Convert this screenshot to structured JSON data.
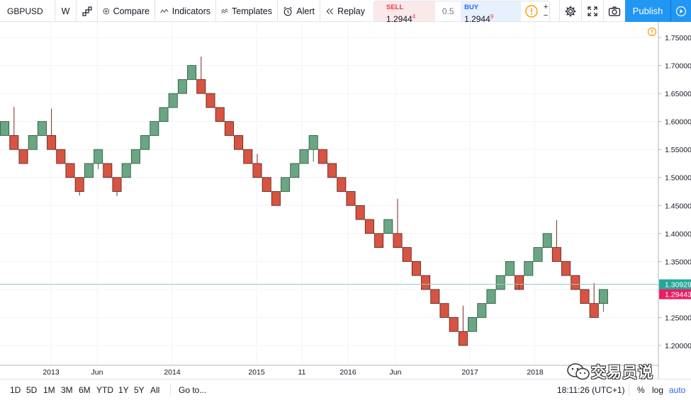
{
  "toolbar": {
    "symbol": "GBPUSD",
    "interval": "W",
    "compare_label": "Compare",
    "indicators_label": "Indicators",
    "templates_label": "Templates",
    "alert_label": "Alert",
    "replay_label": "Replay",
    "publish_label": "Publish"
  },
  "trade": {
    "sell_label": "SELL",
    "sell_price_main": "1.2944",
    "sell_price_sup": "4",
    "spread": "0.5",
    "buy_label": "BUY",
    "buy_price_main": "1.2944",
    "buy_price_sup": "9",
    "plus": "+",
    "minus": "−"
  },
  "bottom": {
    "ranges": [
      "1D",
      "5D",
      "1M",
      "3M",
      "6M",
      "YTD",
      "1Y",
      "5Y",
      "All"
    ],
    "goto_label": "Go to...",
    "clock": "18:11:26 (UTC+1)",
    "percent_label": "%",
    "log_label": "log",
    "auto_label": "auto"
  },
  "watermark": {
    "text": "交易员说"
  },
  "chart_data": {
    "type": "renko",
    "box_size": 0.025,
    "y_ticks": [
      "1.75000",
      "1.70000",
      "1.65000",
      "1.60000",
      "1.55000",
      "1.50000",
      "1.45000",
      "1.40000",
      "1.35000",
      "1.30000",
      "1.25000",
      "1.20000"
    ],
    "y_tick_values": [
      1.75,
      1.7,
      1.65,
      1.6,
      1.55,
      1.5,
      1.45,
      1.4,
      1.35,
      1.3,
      1.25,
      1.2
    ],
    "x_labels": [
      "2013",
      "Jun",
      "2014",
      "2015",
      "11",
      "2016",
      "Jun",
      "2017",
      "2018"
    ],
    "price_labels": [
      {
        "value": "1.30929",
        "color": "#26a69a"
      },
      {
        "value": "1.29443",
        "color": "#e91e63"
      }
    ],
    "colors": {
      "up": "#6ba583",
      "down": "#d75442",
      "border": "#225437",
      "down_border": "#5b1a13",
      "wick": "#555555"
    },
    "bricks": [
      {
        "dir": "up",
        "low": 1.575,
        "high": 1.6
      },
      {
        "dir": "down",
        "low": 1.55,
        "high": 1.575
      },
      {
        "dir": "down",
        "low": 1.525,
        "high": 1.55
      },
      {
        "dir": "up",
        "low": 1.55,
        "high": 1.575
      },
      {
        "dir": "up",
        "low": 1.575,
        "high": 1.6
      },
      {
        "dir": "down",
        "low": 1.55,
        "high": 1.575
      },
      {
        "dir": "down",
        "low": 1.525,
        "high": 1.55
      },
      {
        "dir": "down",
        "low": 1.5,
        "high": 1.525
      },
      {
        "dir": "down",
        "low": 1.475,
        "high": 1.5
      },
      {
        "dir": "up",
        "low": 1.5,
        "high": 1.525
      },
      {
        "dir": "up",
        "low": 1.525,
        "high": 1.55
      },
      {
        "dir": "down",
        "low": 1.5,
        "high": 1.525
      },
      {
        "dir": "down",
        "low": 1.475,
        "high": 1.5
      },
      {
        "dir": "up",
        "low": 1.5,
        "high": 1.525
      },
      {
        "dir": "up",
        "low": 1.525,
        "high": 1.55
      },
      {
        "dir": "up",
        "low": 1.55,
        "high": 1.575
      },
      {
        "dir": "up",
        "low": 1.575,
        "high": 1.6
      },
      {
        "dir": "up",
        "low": 1.6,
        "high": 1.625
      },
      {
        "dir": "up",
        "low": 1.625,
        "high": 1.65
      },
      {
        "dir": "up",
        "low": 1.65,
        "high": 1.675
      },
      {
        "dir": "up",
        "low": 1.675,
        "high": 1.7
      },
      {
        "dir": "down",
        "low": 1.65,
        "high": 1.675
      },
      {
        "dir": "down",
        "low": 1.625,
        "high": 1.65
      },
      {
        "dir": "down",
        "low": 1.6,
        "high": 1.625
      },
      {
        "dir": "down",
        "low": 1.575,
        "high": 1.6
      },
      {
        "dir": "down",
        "low": 1.55,
        "high": 1.575
      },
      {
        "dir": "down",
        "low": 1.525,
        "high": 1.55
      },
      {
        "dir": "down",
        "low": 1.5,
        "high": 1.525
      },
      {
        "dir": "down",
        "low": 1.475,
        "high": 1.5
      },
      {
        "dir": "down",
        "low": 1.45,
        "high": 1.475
      },
      {
        "dir": "up",
        "low": 1.475,
        "high": 1.5
      },
      {
        "dir": "up",
        "low": 1.5,
        "high": 1.525
      },
      {
        "dir": "up",
        "low": 1.525,
        "high": 1.55
      },
      {
        "dir": "up",
        "low": 1.55,
        "high": 1.575
      },
      {
        "dir": "down",
        "low": 1.525,
        "high": 1.55
      },
      {
        "dir": "down",
        "low": 1.5,
        "high": 1.525
      },
      {
        "dir": "down",
        "low": 1.475,
        "high": 1.5
      },
      {
        "dir": "down",
        "low": 1.45,
        "high": 1.475
      },
      {
        "dir": "down",
        "low": 1.425,
        "high": 1.45
      },
      {
        "dir": "down",
        "low": 1.4,
        "high": 1.425
      },
      {
        "dir": "down",
        "low": 1.375,
        "high": 1.4
      },
      {
        "dir": "up",
        "low": 1.4,
        "high": 1.425
      },
      {
        "dir": "down",
        "low": 1.375,
        "high": 1.4
      },
      {
        "dir": "down",
        "low": 1.35,
        "high": 1.375
      },
      {
        "dir": "down",
        "low": 1.325,
        "high": 1.35
      },
      {
        "dir": "down",
        "low": 1.3,
        "high": 1.325
      },
      {
        "dir": "down",
        "low": 1.275,
        "high": 1.3
      },
      {
        "dir": "down",
        "low": 1.25,
        "high": 1.275
      },
      {
        "dir": "down",
        "low": 1.225,
        "high": 1.25
      },
      {
        "dir": "down",
        "low": 1.2,
        "high": 1.225
      },
      {
        "dir": "up",
        "low": 1.225,
        "high": 1.25
      },
      {
        "dir": "up",
        "low": 1.25,
        "high": 1.275
      },
      {
        "dir": "up",
        "low": 1.275,
        "high": 1.3
      },
      {
        "dir": "up",
        "low": 1.3,
        "high": 1.325
      },
      {
        "dir": "up",
        "low": 1.325,
        "high": 1.35
      },
      {
        "dir": "down",
        "low": 1.3,
        "high": 1.325
      },
      {
        "dir": "up",
        "low": 1.325,
        "high": 1.35
      },
      {
        "dir": "up",
        "low": 1.35,
        "high": 1.375
      },
      {
        "dir": "up",
        "low": 1.375,
        "high": 1.4
      },
      {
        "dir": "down",
        "low": 1.35,
        "high": 1.375
      },
      {
        "dir": "down",
        "low": 1.325,
        "high": 1.35
      },
      {
        "dir": "down",
        "low": 1.3,
        "high": 1.325
      },
      {
        "dir": "down",
        "low": 1.275,
        "high": 1.3
      },
      {
        "dir": "down",
        "low": 1.25,
        "high": 1.275
      },
      {
        "dir": "up",
        "low": 1.275,
        "high": 1.3
      }
    ],
    "wicks": [
      {
        "brick": 1,
        "top": 1.626
      },
      {
        "brick": 5,
        "top": 1.623
      },
      {
        "brick": 8,
        "bottom": 1.468
      },
      {
        "brick": 10,
        "bottom": 1.515
      },
      {
        "brick": 12,
        "bottom": 1.467
      },
      {
        "brick": 21,
        "top": 1.716
      },
      {
        "brick": 27,
        "top": 1.542
      },
      {
        "brick": 33,
        "bottom": 1.528
      },
      {
        "brick": 42,
        "top": 1.462
      },
      {
        "brick": 49,
        "top": 1.271
      },
      {
        "brick": 55,
        "bottom": 1.311
      },
      {
        "brick": 59,
        "top": 1.424
      },
      {
        "brick": 63,
        "top": 1.312
      },
      {
        "brick": 64,
        "bottom": 1.26
      }
    ],
    "grid": true
  }
}
